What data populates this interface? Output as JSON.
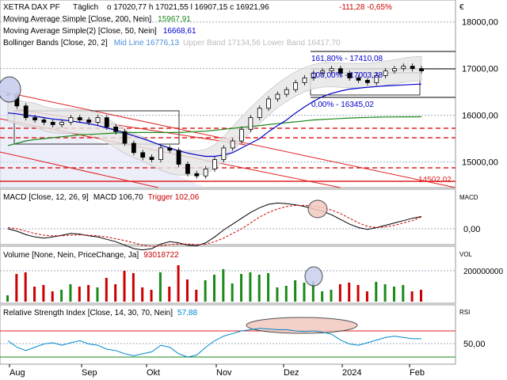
{
  "header": {
    "instrument": "XETRA DAX PF",
    "interval": "Täglich",
    "quote": "o 17020,77  h 17021,55  l 16907,15  c 16921,96",
    "change": "-111,28  -0,65%",
    "currency": "€"
  },
  "legend_lines": [
    {
      "label": "Moving Average Simple  [Close, 200, Nein]",
      "value": "15967,91",
      "color": "#1a8a1a"
    },
    {
      "label": "Moving Average Simple(2)  [Close, 50, Nein]",
      "value": "16668,61",
      "color": "#0000cc"
    },
    {
      "label": "Bollinger Bands  [Close, 20, 2]",
      "value": "Mid Line 16776,13",
      "extra": "Upper Band 17134,56  Lower Band 16417,70",
      "color": "#4a90d9"
    }
  ],
  "annotations": {
    "fib_top": "161,80% - 17410,08",
    "fib_mid": "100,00% - 17003,28",
    "fib_low": "0,00% - 16345,02",
    "support_label": "14502,02"
  },
  "panels": {
    "macd": {
      "label": "MACD  [Close, 12, 26, 9]",
      "macd_value": "MACD 106,70",
      "trigger_value": "Trigger 102,06",
      "axis_title": "MACD"
    },
    "volume": {
      "label": "Volume  [None, Nein, PriceChange, Ja]",
      "value": "93018722",
      "axis_title": "VOL"
    },
    "rsi": {
      "label": "Relative Strength Index  [Close, 14, 30, 70, Nein]",
      "value": "57,88",
      "axis_title": "RSI"
    }
  },
  "chart_data": {
    "type": "line",
    "title": "XETRA DAX PF",
    "x_labels": [
      "Aug",
      "Sep",
      "Okt",
      "Nov",
      "Dez",
      "2024",
      "Feb"
    ],
    "price_axis_ticks": [
      "18000,00",
      "17000,00",
      "16000,00",
      "15000,00"
    ],
    "price_ylim": [
      14450,
      18300
    ],
    "macd_axis_ticks": [
      "0,00"
    ],
    "volume_axis_ticks": [
      "200000000"
    ],
    "rsi_axis_ticks": [
      "50,00"
    ],
    "series": [
      {
        "name": "Close",
        "values": [
          16450,
          16200,
          15950,
          15900,
          15850,
          15800,
          15850,
          15950,
          15900,
          15850,
          15950,
          15750,
          15650,
          15400,
          15200,
          15100,
          15050,
          15300,
          15250,
          14950,
          14750,
          14700,
          14850,
          15050,
          15300,
          15450,
          15700,
          15950,
          16150,
          16350,
          16450,
          16550,
          16700,
          16800,
          16900,
          16950,
          17000,
          16900,
          16800,
          16750,
          16700,
          16850,
          16950,
          17000,
          17050,
          17000,
          16950
        ]
      },
      {
        "name": "Moving Average Simple [Close, 200, Nein]",
        "values": [
          15350,
          15400,
          15450,
          15480,
          15500,
          15520,
          15540,
          15560,
          15580,
          15590,
          15600,
          15610,
          15620,
          15625,
          15630,
          15630,
          15630,
          15630,
          15630,
          15630,
          15640,
          15650,
          15660,
          15680,
          15700,
          15720,
          15740,
          15760,
          15780,
          15800,
          15820,
          15840,
          15860,
          15880,
          15900,
          15910,
          15920,
          15930,
          15940,
          15950,
          15955,
          15960,
          15963,
          15965,
          15966,
          15967,
          15968
        ]
      },
      {
        "name": "Moving Average Simple(2) [Close, 50, Nein]",
        "values": [
          16050,
          16030,
          16000,
          15980,
          15950,
          15920,
          15900,
          15880,
          15850,
          15820,
          15780,
          15730,
          15680,
          15620,
          15560,
          15500,
          15430,
          15360,
          15300,
          15240,
          15190,
          15150,
          15120,
          15120,
          15150,
          15200,
          15300,
          15400,
          15500,
          15650,
          15780,
          15900,
          16050,
          16180,
          16300,
          16400,
          16470,
          16520,
          16560,
          16580,
          16600,
          16615,
          16630,
          16640,
          16650,
          16660,
          16668
        ]
      },
      {
        "name": "MACD",
        "values": [
          0,
          -20,
          -50,
          -70,
          -80,
          -70,
          -55,
          -40,
          -45,
          -60,
          -70,
          -90,
          -110,
          -140,
          -170,
          -180,
          -170,
          -130,
          -110,
          -120,
          -140,
          -145,
          -120,
          -70,
          -10,
          40,
          90,
          140,
          180,
          210,
          220,
          215,
          205,
          190,
          170,
          150,
          120,
          80,
          40,
          10,
          -5,
          10,
          30,
          50,
          70,
          90,
          105
        ]
      },
      {
        "name": "Trigger",
        "values": [
          10,
          0,
          -20,
          -40,
          -55,
          -60,
          -60,
          -55,
          -52,
          -55,
          -60,
          -70,
          -85,
          -100,
          -120,
          -140,
          -150,
          -145,
          -135,
          -130,
          -130,
          -135,
          -130,
          -110,
          -80,
          -40,
          0,
          50,
          100,
          140,
          170,
          190,
          200,
          200,
          195,
          180,
          160,
          130,
          90,
          50,
          20,
          10,
          15,
          30,
          50,
          70,
          102
        ]
      },
      {
        "name": "Relative Strength Index",
        "values": [
          55,
          45,
          40,
          45,
          50,
          52,
          48,
          52,
          55,
          50,
          48,
          42,
          40,
          35,
          32,
          35,
          38,
          48,
          45,
          35,
          30,
          33,
          45,
          55,
          62,
          66,
          70,
          72,
          74,
          73,
          72,
          72,
          70,
          69,
          70,
          68,
          65,
          56,
          50,
          48,
          52,
          56,
          60,
          62,
          60,
          58,
          58
        ]
      }
    ]
  }
}
